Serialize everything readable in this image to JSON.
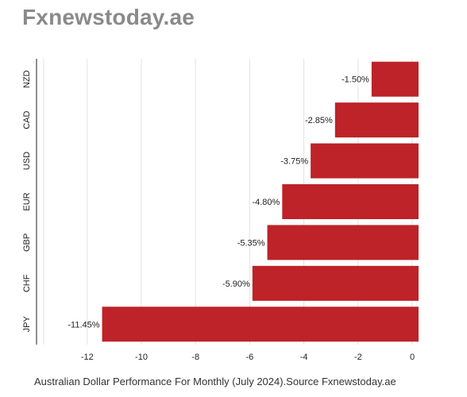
{
  "brand": "Fxnewstoday.ae",
  "caption": "Australian Dollar Performance For Monthly (July 2024).Source Fxnewstoday.ae",
  "colors": {
    "bar": "#bd2328",
    "grid": "#e3e3e3",
    "axis": "#222222",
    "brand": "#8a8a8a"
  },
  "chart_data": {
    "type": "bar",
    "orientation": "horizontal",
    "categories": [
      "NZD",
      "CAD",
      "USD",
      "EUR",
      "GBP",
      "CHF",
      "JPY"
    ],
    "values": [
      -1.5,
      -2.85,
      -3.75,
      -4.8,
      -5.35,
      -5.9,
      -11.45
    ],
    "value_labels": [
      "-1.50%",
      "-2.85%",
      "-3.75%",
      "-4.80%",
      "-5.35%",
      "-5.90%",
      "-11.45%"
    ],
    "xlim": [
      -14,
      0
    ],
    "xticks": [
      -12,
      -10,
      -8,
      -6,
      -4,
      -2,
      0
    ],
    "title": "",
    "xlabel": "",
    "ylabel": "",
    "grid": "vertical",
    "legend": "none"
  }
}
